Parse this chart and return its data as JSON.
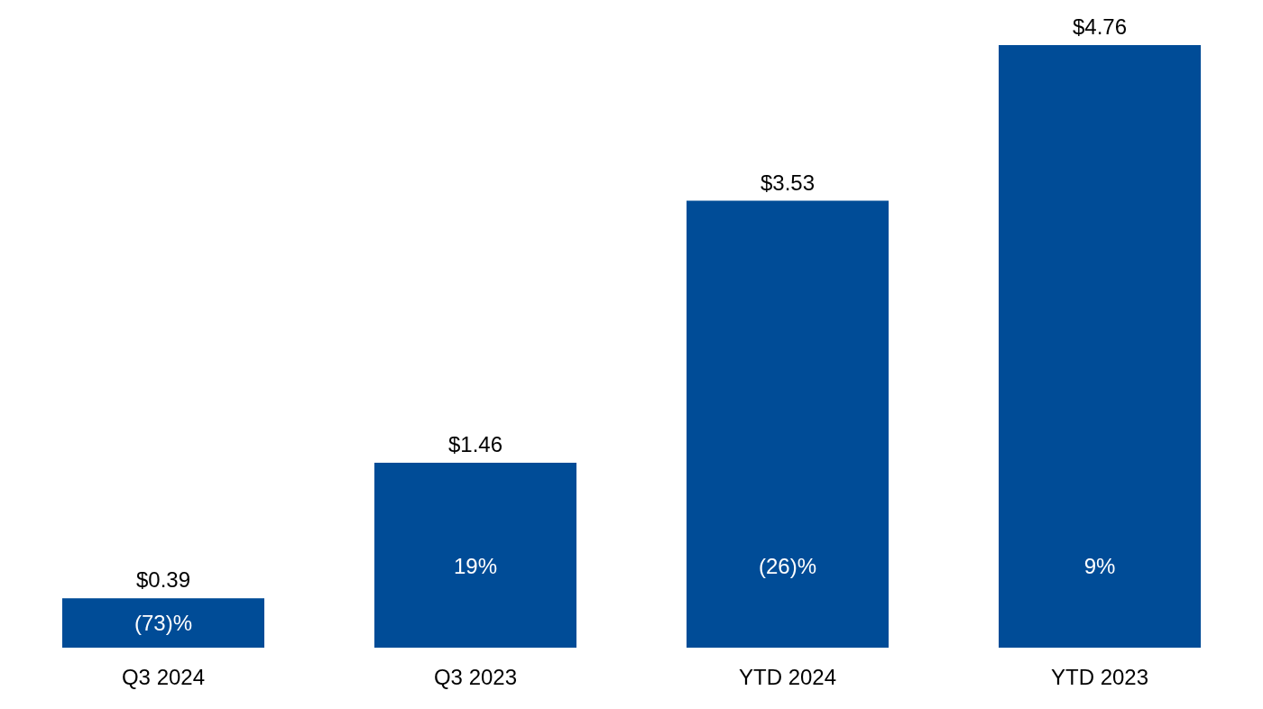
{
  "chart_data": {
    "type": "bar",
    "categories": [
      "Q3 2024",
      "Q3 2023",
      "YTD 2024",
      "YTD 2023"
    ],
    "values": [
      0.39,
      1.46,
      3.53,
      4.76
    ],
    "value_labels": [
      "$0.39",
      "$1.46",
      "$3.53",
      "$4.76"
    ],
    "color": "#004c97",
    "annotations": [
      "(73)%",
      "19%",
      "(26)%",
      "9%"
    ],
    "grid": false,
    "legend": false
  }
}
